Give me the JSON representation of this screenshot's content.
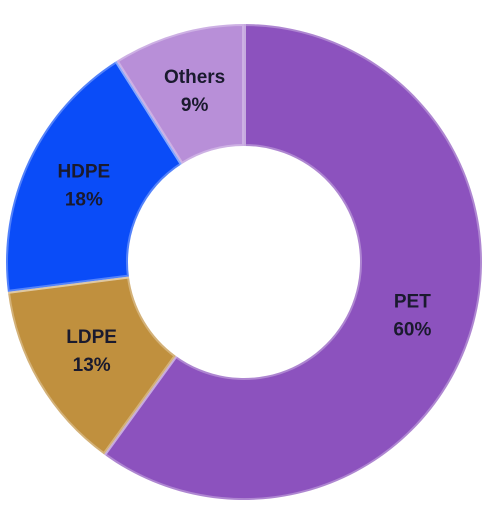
{
  "chart_data": {
    "type": "donut",
    "categories": [
      "PET",
      "LDPE",
      "HDPE",
      "Others"
    ],
    "values": [
      60,
      13,
      18,
      9
    ],
    "value_labels": [
      "60%",
      "13%",
      "18%",
      "9%"
    ],
    "colors": [
      "#8c52be",
      "#c0903e",
      "#0a4cf8",
      "#b88fd8"
    ]
  }
}
